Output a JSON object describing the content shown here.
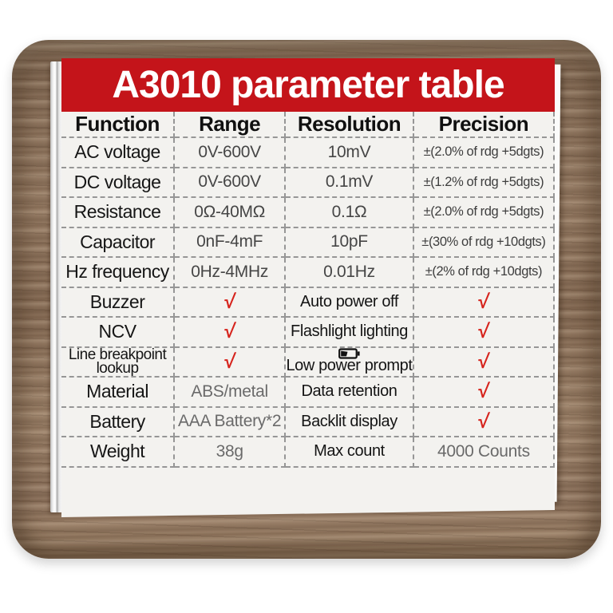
{
  "title": "A3010 parameter table",
  "check_glyph": "√",
  "colors": {
    "header_red": "#c4141a",
    "check_red": "#d6231c",
    "paper": "#f3f2ef",
    "wood": "#93795f"
  },
  "columns": [
    "Function",
    "Range",
    "Resolution",
    "Precision"
  ],
  "rows": [
    {
      "cells": [
        {
          "t": "AC voltage",
          "k": "fn"
        },
        {
          "t": "0V-600V",
          "k": "val"
        },
        {
          "t": "10mV",
          "k": "val"
        },
        {
          "t": "±(2.0% of rdg +5dgts)",
          "k": "prec"
        }
      ]
    },
    {
      "cells": [
        {
          "t": "DC voltage",
          "k": "fn"
        },
        {
          "t": "0V-600V",
          "k": "val"
        },
        {
          "t": "0.1mV",
          "k": "val"
        },
        {
          "t": "±(1.2% of rdg +5dgts)",
          "k": "prec"
        }
      ]
    },
    {
      "cells": [
        {
          "t": "Resistance",
          "k": "fn"
        },
        {
          "t": "0Ω-40MΩ",
          "k": "val"
        },
        {
          "t": "0.1Ω",
          "k": "val"
        },
        {
          "t": "±(2.0% of rdg +5dgts)",
          "k": "prec"
        }
      ]
    },
    {
      "cells": [
        {
          "t": "Capacitor",
          "k": "fn"
        },
        {
          "t": "0nF-4mF",
          "k": "val"
        },
        {
          "t": "10pF",
          "k": "val"
        },
        {
          "t": "±(30% of rdg +10dgts)",
          "k": "prec"
        }
      ]
    },
    {
      "cells": [
        {
          "t": "Hz frequency",
          "k": "fn"
        },
        {
          "t": "0Hz-4MHz",
          "k": "val"
        },
        {
          "t": "0.01Hz",
          "k": "val"
        },
        {
          "t": "±(2% of rdg +10dgts)",
          "k": "prec"
        }
      ]
    },
    {
      "cells": [
        {
          "t": "Buzzer",
          "k": "fn"
        },
        {
          "k": "check"
        },
        {
          "t": "Auto power off",
          "k": "feat"
        },
        {
          "k": "check"
        }
      ]
    },
    {
      "cells": [
        {
          "t": "NCV",
          "k": "fn"
        },
        {
          "k": "check"
        },
        {
          "t": "Flashlight lighting",
          "k": "feat"
        },
        {
          "k": "check"
        }
      ]
    },
    {
      "cells": [
        {
          "t": "Line breakpoint lookup",
          "k": "fn-small"
        },
        {
          "k": "check"
        },
        {
          "t": "Low power prompt",
          "k": "feat-battery"
        },
        {
          "k": "check"
        }
      ]
    },
    {
      "cells": [
        {
          "t": "Material",
          "k": "fn"
        },
        {
          "t": "ABS/metal",
          "k": "muted"
        },
        {
          "t": "Data retention",
          "k": "feat"
        },
        {
          "k": "check"
        }
      ]
    },
    {
      "cells": [
        {
          "t": "Battery",
          "k": "fn"
        },
        {
          "t": "AAA Battery*2",
          "k": "muted"
        },
        {
          "t": "Backlit display",
          "k": "feat"
        },
        {
          "k": "check"
        }
      ]
    },
    {
      "cells": [
        {
          "t": "Weight",
          "k": "fn"
        },
        {
          "t": "38g",
          "k": "muted"
        },
        {
          "t": "Max count",
          "k": "feat"
        },
        {
          "t": "4000 Counts",
          "k": "muted"
        }
      ]
    }
  ]
}
